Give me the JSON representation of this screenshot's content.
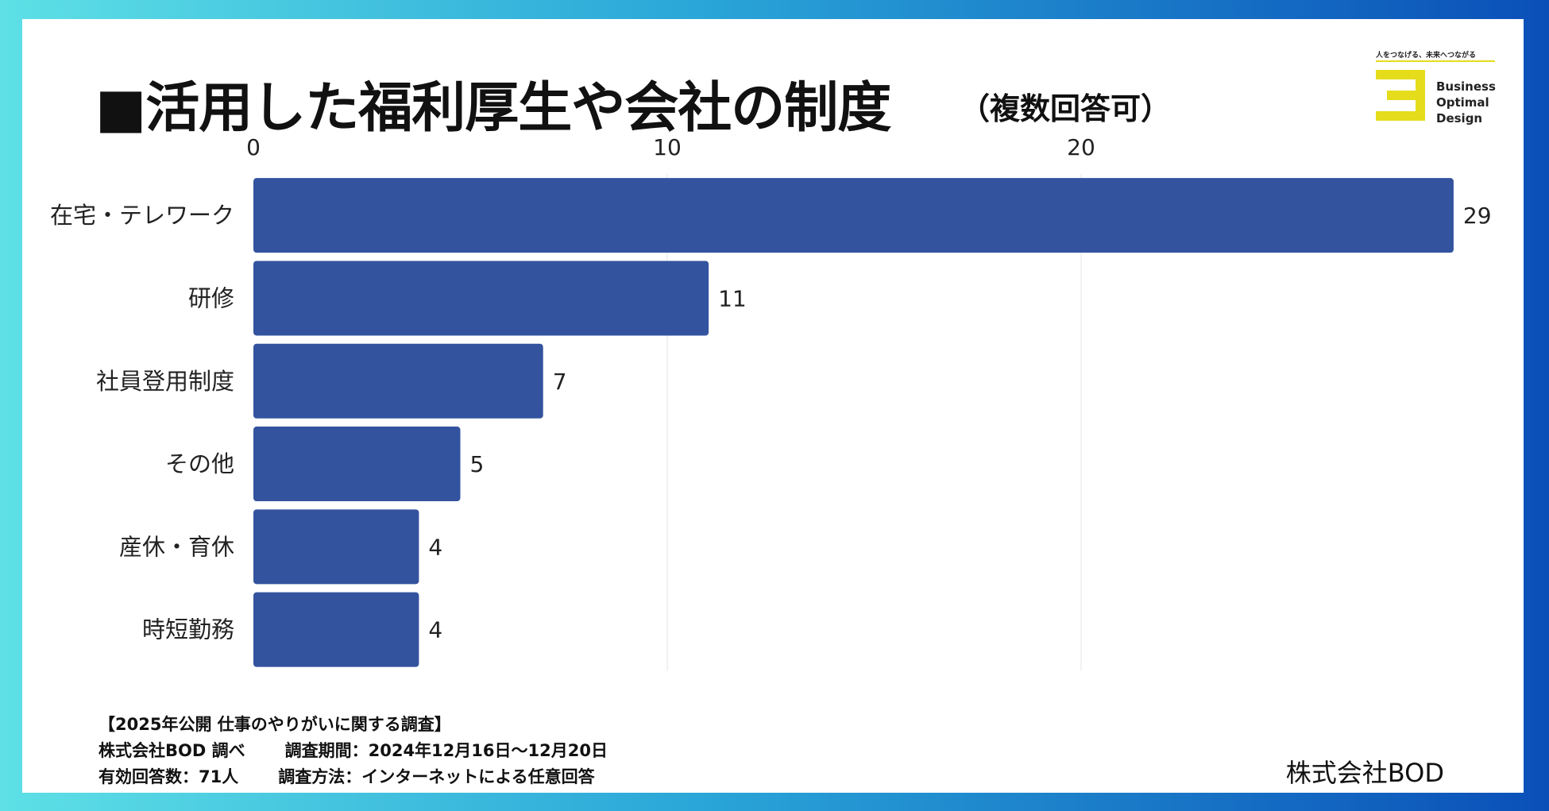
{
  "title": "■活用した福利厚生や会社の制度",
  "subtitle": "（複数回答可）",
  "logo": {
    "tagline": "人をつなげる、未来へつながる",
    "word1": "Business",
    "word2": "Optimal",
    "word3": "Design",
    "accent_color": "#e5dc1c"
  },
  "chart_data": {
    "type": "bar",
    "orientation": "horizontal",
    "title": "■活用した福利厚生や会社の制度",
    "categories": [
      "在宅・テレワーク",
      "研修",
      "社員登用制度",
      "その他",
      "産休・育休",
      "時短勤務"
    ],
    "values": [
      29,
      11,
      7,
      5,
      4,
      4
    ],
    "xticks": [
      0,
      10,
      20
    ],
    "xlim": [
      0,
      29
    ],
    "xaxis_position": "top",
    "grid": true,
    "bar_color": "#33539e",
    "xlabel": "",
    "ylabel": ""
  },
  "footnote": {
    "line1": "【2025年公開 仕事のやりがいに関する調査】",
    "line2a": "株式会社BOD 調べ",
    "line2b": "調査期間：2024年12月16日～12月20日",
    "line3a": "有効回答数：71人",
    "line3b": "調査方法：インターネットによる任意回答"
  },
  "company": "株式会社BOD"
}
